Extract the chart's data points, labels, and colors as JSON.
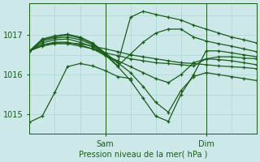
{
  "xlabel": "Pression niveau de la mer( hPa )",
  "bg_color": "#cce8e8",
  "grid_color": "#aad4d4",
  "line_color": "#1a5c1a",
  "ylim": [
    1014.5,
    1017.8
  ],
  "xlim": [
    0,
    54
  ],
  "sam_x": 18,
  "dim_x": 42,
  "yticks": [
    1015,
    1016,
    1017
  ],
  "series": [
    {
      "x": [
        0,
        3,
        6,
        9,
        12,
        15,
        18,
        21,
        24,
        27,
        30,
        33,
        36,
        39,
        42,
        45,
        48,
        51,
        54
      ],
      "y": [
        1016.6,
        1016.75,
        1016.8,
        1016.8,
        1016.78,
        1016.72,
        1016.65,
        1016.58,
        1016.5,
        1016.45,
        1016.4,
        1016.35,
        1016.3,
        1016.28,
        1016.25,
        1016.22,
        1016.2,
        1016.18,
        1016.15
      ]
    },
    {
      "x": [
        0,
        3,
        6,
        9,
        12,
        15,
        18,
        21,
        24,
        27,
        30,
        33,
        36,
        39,
        42,
        45,
        48,
        51,
        54
      ],
      "y": [
        1016.6,
        1016.72,
        1016.78,
        1016.78,
        1016.72,
        1016.65,
        1016.55,
        1016.48,
        1016.4,
        1016.35,
        1016.3,
        1016.28,
        1016.25,
        1016.22,
        1016.4,
        1016.45,
        1016.45,
        1016.42,
        1016.4
      ]
    },
    {
      "x": [
        0,
        3,
        6,
        9,
        12,
        15,
        18,
        21,
        24,
        27,
        30,
        33,
        36,
        39,
        42,
        45,
        48,
        51,
        54
      ],
      "y": [
        1016.6,
        1016.75,
        1016.82,
        1016.82,
        1016.75,
        1016.65,
        1016.48,
        1016.35,
        1016.2,
        1016.05,
        1015.9,
        1015.8,
        1016.0,
        1016.3,
        1016.4,
        1016.38,
        1016.35,
        1016.3,
        1016.25
      ]
    },
    {
      "x": [
        0,
        3,
        6,
        9,
        12,
        15,
        18,
        21,
        24,
        27,
        30,
        33,
        36,
        39,
        42,
        45,
        48,
        51,
        54
      ],
      "y": [
        1016.6,
        1016.8,
        1016.88,
        1016.9,
        1016.82,
        1016.7,
        1016.5,
        1016.3,
        1016.05,
        1015.7,
        1015.3,
        1015.05,
        1015.6,
        1015.95,
        1016.05,
        1016.0,
        1015.95,
        1015.9,
        1015.85
      ]
    },
    {
      "x": [
        0,
        3,
        6,
        9,
        12,
        15,
        18,
        21,
        24,
        27,
        30,
        33,
        36,
        39,
        42,
        45,
        48,
        51,
        54
      ],
      "y": [
        1016.6,
        1016.85,
        1016.92,
        1016.95,
        1016.88,
        1016.75,
        1016.5,
        1016.2,
        1015.85,
        1015.4,
        1014.95,
        1014.82,
        1015.5,
        1016.0,
        1016.6,
        1016.6,
        1016.55,
        1016.5,
        1016.45
      ]
    },
    {
      "x": [
        0,
        3,
        6,
        9,
        12,
        15,
        18,
        21,
        24,
        27,
        30,
        33,
        36,
        39,
        42,
        45,
        48,
        51,
        54
      ],
      "y": [
        1016.6,
        1016.88,
        1016.95,
        1017.0,
        1016.92,
        1016.78,
        1016.52,
        1016.22,
        1016.52,
        1016.82,
        1017.05,
        1017.15,
        1017.15,
        1016.95,
        1016.85,
        1016.78,
        1016.72,
        1016.65,
        1016.58
      ]
    },
    {
      "x": [
        0,
        3,
        6,
        9,
        12,
        15,
        18,
        21,
        24,
        27,
        30,
        33,
        36,
        39,
        42,
        45,
        48,
        51,
        54
      ],
      "y": [
        1016.6,
        1016.9,
        1016.98,
        1017.02,
        1016.95,
        1016.8,
        1016.55,
        1016.3,
        1017.45,
        1017.6,
        1017.52,
        1017.45,
        1017.38,
        1017.25,
        1017.15,
        1017.05,
        1016.95,
        1016.88,
        1016.8
      ]
    },
    {
      "x": [
        0,
        3,
        6,
        9,
        12,
        15,
        18,
        21,
        24
      ],
      "y": [
        1014.8,
        1014.95,
        1015.55,
        1016.2,
        1016.28,
        1016.22,
        1016.1,
        1015.95,
        1015.9
      ]
    }
  ]
}
